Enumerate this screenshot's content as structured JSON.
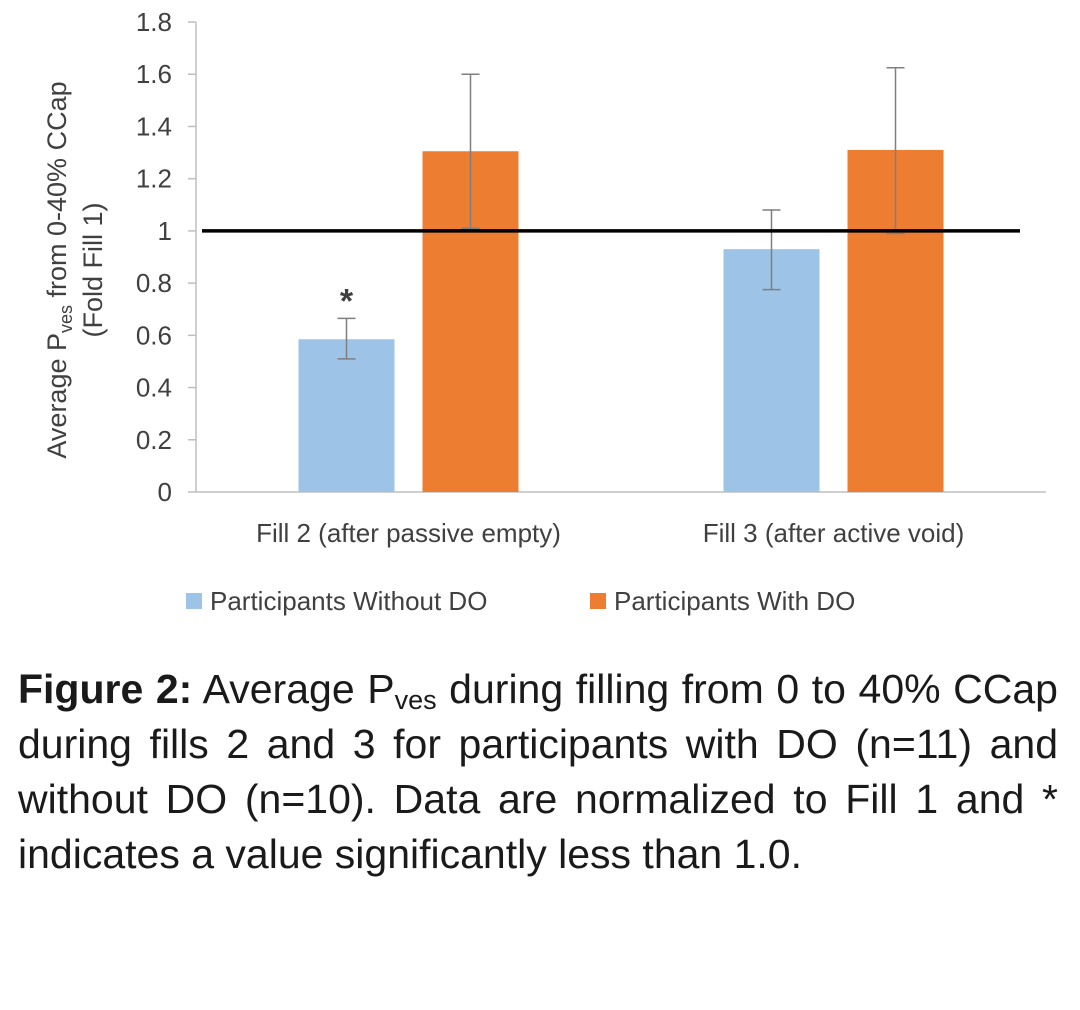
{
  "chart_data": {
    "type": "bar",
    "ylabel_main": "Average P",
    "ylabel_sub": "ves",
    "ylabel_tail": " from 0-40% CCap",
    "ylabel_line2": "(Fold Fill 1)",
    "xlabel": "",
    "categories": [
      "Fill 2 (after passive empty)",
      "Fill 3 (after active void)"
    ],
    "series": [
      {
        "name": "Participants Without DO",
        "color": "#9dc3e6",
        "values": [
          0.585,
          0.93
        ],
        "err_low": [
          0.51,
          0.775
        ],
        "err_high": [
          0.665,
          1.08
        ]
      },
      {
        "name": "Participants With DO",
        "color": "#ed7d31",
        "values": [
          1.305,
          1.31
        ],
        "err_low": [
          1.01,
          0.99
        ],
        "err_high": [
          1.6,
          1.625
        ]
      }
    ],
    "ylim": [
      0,
      1.8
    ],
    "yticks": [
      "0",
      "0.2",
      "0.4",
      "0.6",
      "0.8",
      "1",
      "1.2",
      "1.4",
      "1.6",
      "1.8"
    ],
    "reference_line": 1.0,
    "annotations": [
      {
        "category": 0,
        "series": 0,
        "text": "*"
      }
    ],
    "grid": false,
    "legend_position": "bottom"
  },
  "caption": {
    "label": "Figure 2:",
    "text_1": " Average P",
    "sub": "ves",
    "text_2": " during filling from 0 to 40% CCap during fills 2 and 3 for participants with DO (n=11) and without DO (n=10). Data are normalized to Fill 1 and * indicates a value significantly less than 1.0."
  }
}
